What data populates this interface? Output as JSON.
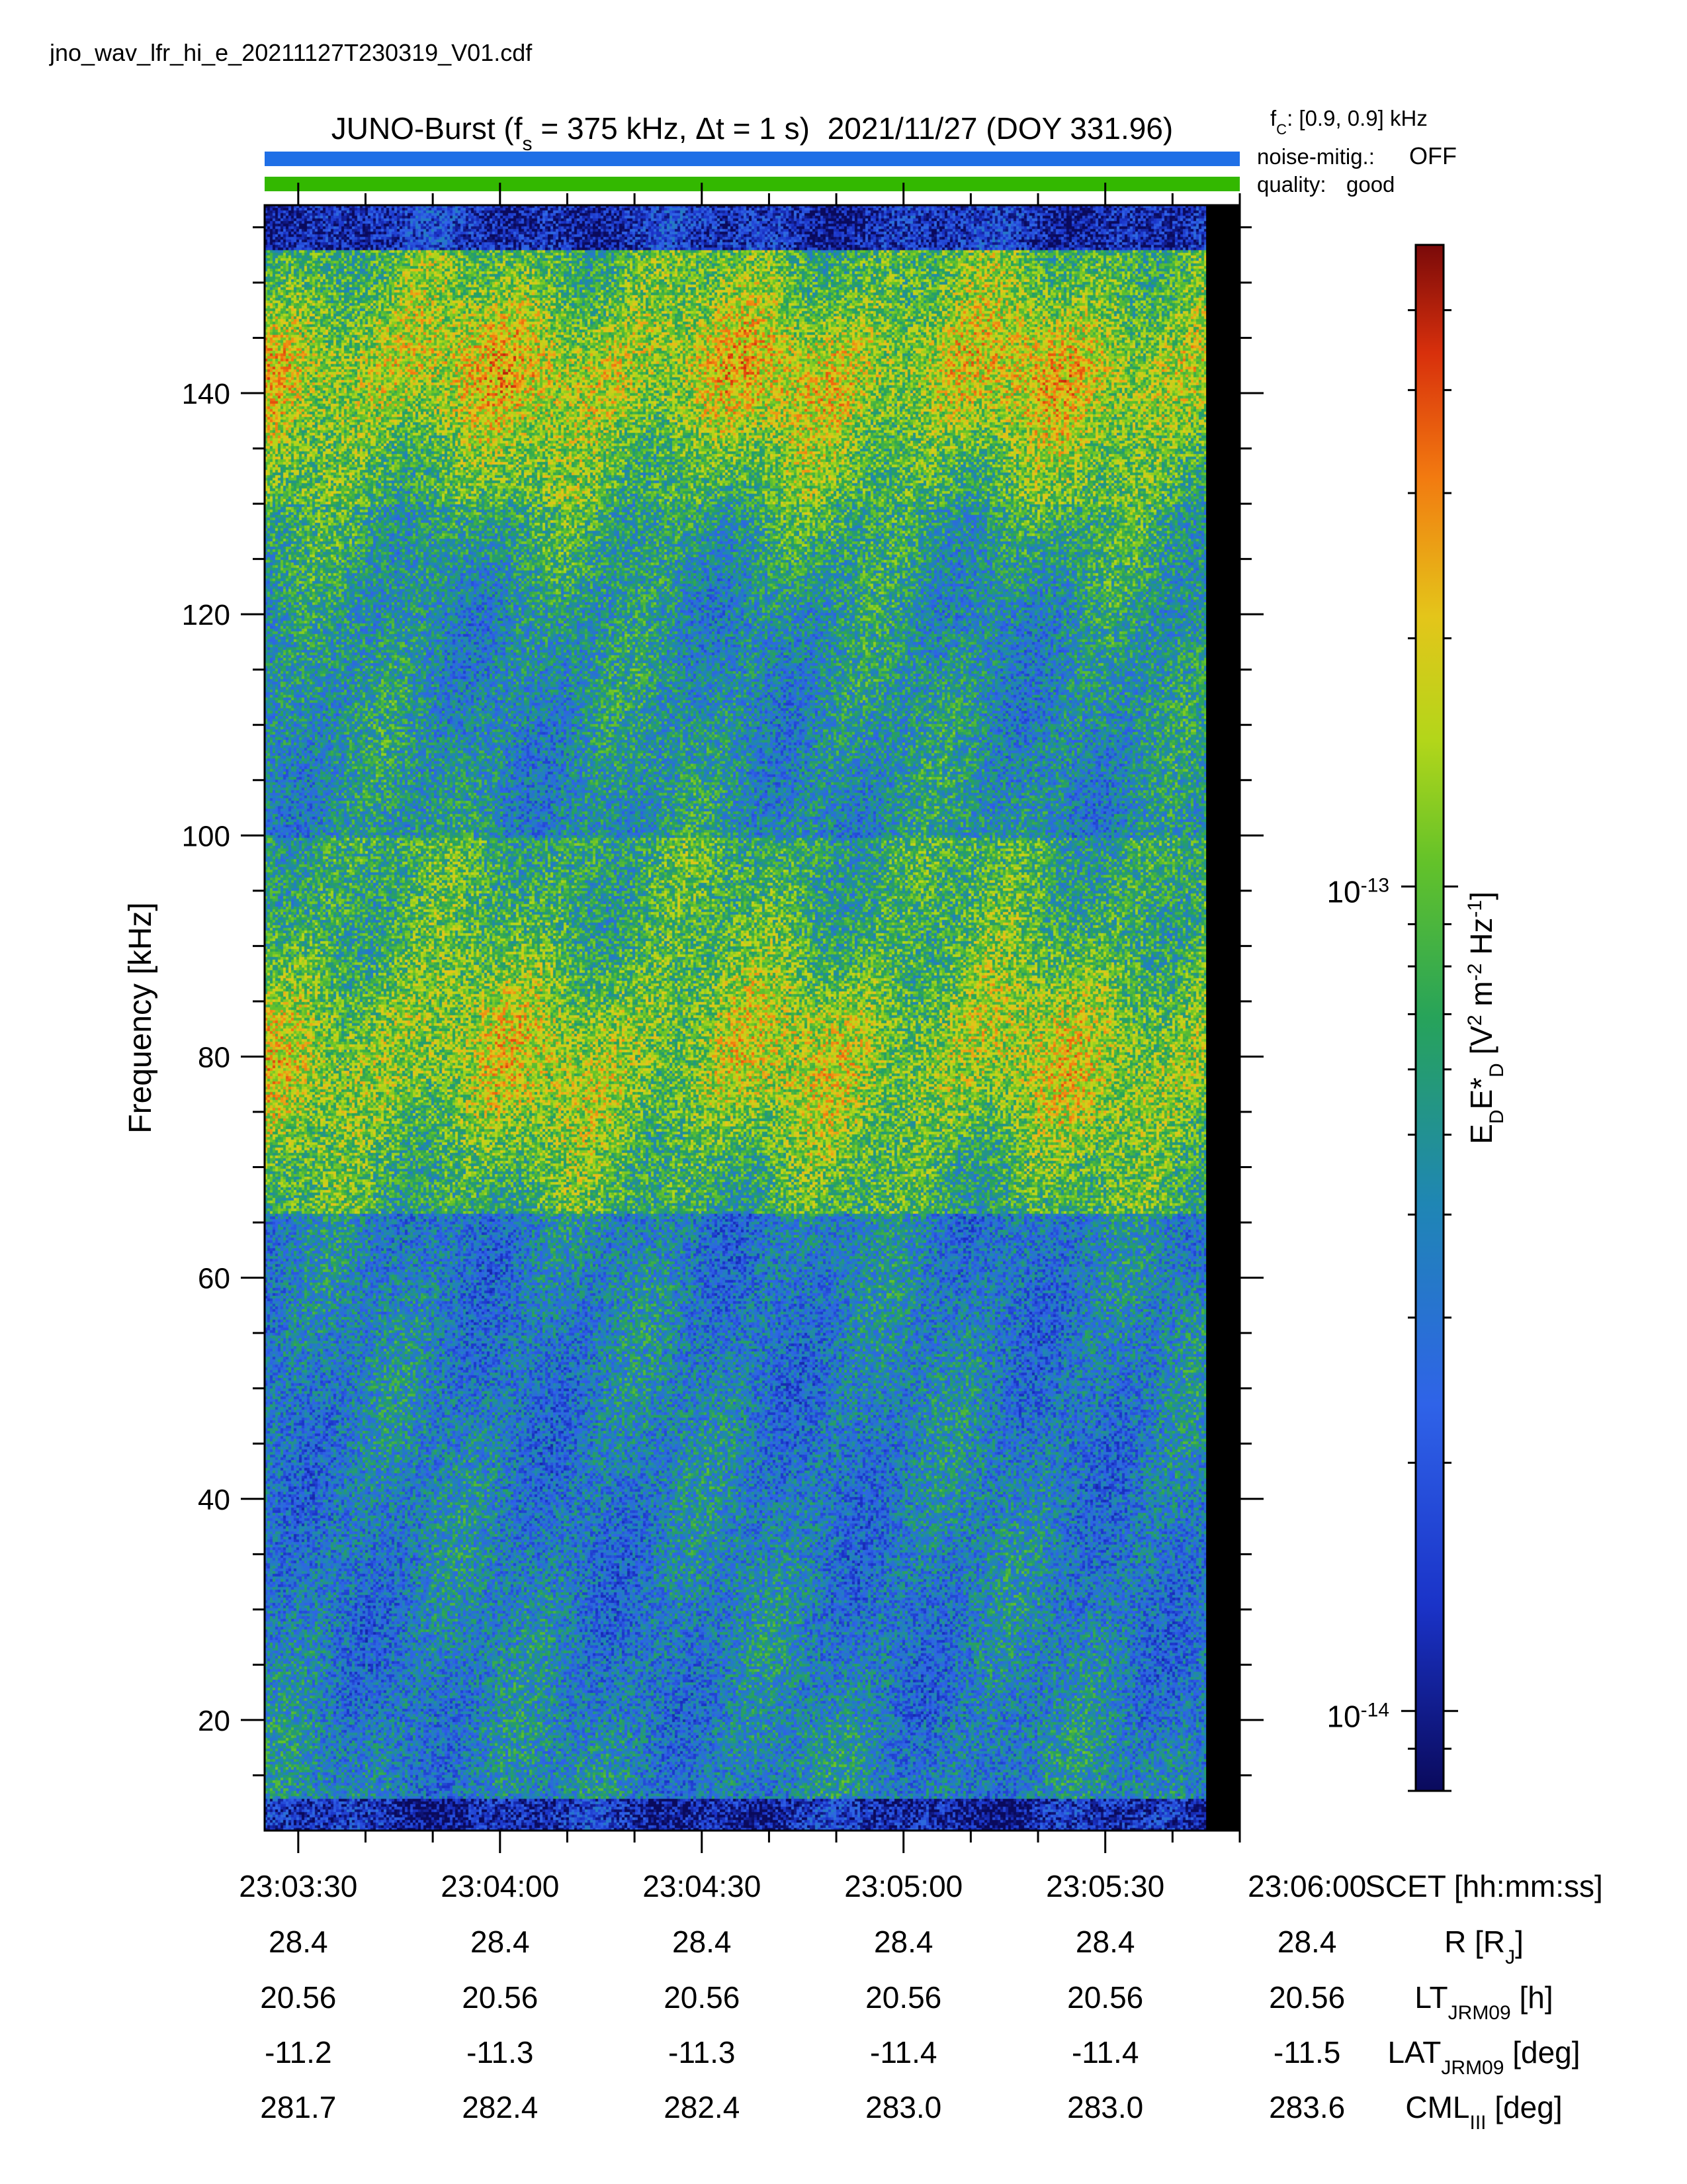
{
  "filename": "jno_wav_lfr_hi_e_20211127T230319_V01.cdf",
  "title": {
    "instrument": "JUNO-Burst",
    "fs_label": "f",
    "fs_sub": "s",
    "fs_value": "= 375 kHz,",
    "dt_label": "Δt = 1 s)",
    "date": "2021/11/27 (DOY 331.96)"
  },
  "side_info": {
    "fc_label": "f",
    "fc_sub": "C",
    "fc_value": ": [0.9, 0.9] kHz",
    "noise_label": "noise-mitig.:",
    "noise_value": "OFF",
    "quality_label": "quality:",
    "quality_value": "good"
  },
  "colors": {
    "noise_bar": "#1f6fe6",
    "quality_bar": "#33b800",
    "noise_text": "#1f6fe6",
    "quality_text": "#33b800",
    "data_gap": "#000000"
  },
  "chart_data": {
    "type": "heatmap",
    "ylabel": "Frequency [kHz]",
    "ylim": [
      10,
      157
    ],
    "y_ticks": [
      20,
      40,
      60,
      80,
      100,
      120,
      140
    ],
    "x_range_seconds": [
      -5,
      140
    ],
    "x_ticks_seconds": [
      0,
      30,
      60,
      90,
      120,
      150
    ],
    "x_tick_labels": [
      "23:03:30",
      "23:04:00",
      "23:04:30",
      "23:05:00",
      "23:05:30",
      "23:06:00"
    ],
    "data_gap_seconds": [
      135,
      140
    ],
    "colorbar": {
      "label": "E_D E*_D [V^2 m^-2 Hz^-1]",
      "scale": "log",
      "range": [
        8e-15,
        6e-13
      ],
      "tick_values": [
        1e-14,
        1e-13
      ],
      "tick_labels": [
        {
          "base": "10",
          "exp": "-14"
        },
        {
          "base": "10",
          "exp": "-13"
        }
      ]
    },
    "bands": [
      {
        "f_range": [
          10,
          13
        ],
        "level": "low (dark blue)"
      },
      {
        "f_range": [
          13,
          66
        ],
        "level": "moderate (blue with green speckle)"
      },
      {
        "f_range": [
          66,
          100
        ],
        "level": "high (yellow-green with red patches near 72-85 kHz)"
      },
      {
        "f_range": [
          100,
          130
        ],
        "level": "moderate (blue-green)"
      },
      {
        "f_range": [
          130,
          153
        ],
        "level": "high (yellow with red patches near 135-148 kHz)"
      },
      {
        "f_range": [
          153,
          157
        ],
        "level": "low (dark blue)"
      }
    ]
  },
  "ephemeris": {
    "rows": [
      {
        "label": "SCET [hh:mm:ss]",
        "values": [
          "23:03:30",
          "23:04:00",
          "23:04:30",
          "23:05:00",
          "23:05:30",
          "23:06:00"
        ]
      },
      {
        "label": "R [RJ]",
        "values": [
          "28.4",
          "28.4",
          "28.4",
          "28.4",
          "28.4",
          "28.4"
        ]
      },
      {
        "label": "LTJRM09 [h]",
        "values": [
          "20.56",
          "20.56",
          "20.56",
          "20.56",
          "20.56",
          "20.56"
        ]
      },
      {
        "label": "LATJRM09 [deg]",
        "values": [
          "-11.2",
          "-11.3",
          "-11.3",
          "-11.4",
          "-11.4",
          "-11.5"
        ]
      },
      {
        "label": "CMLIII [deg]",
        "values": [
          "281.7",
          "282.4",
          "282.4",
          "283.0",
          "283.0",
          "283.6"
        ]
      }
    ],
    "label_parts": {
      "scet": "SCET [hh:mm:ss]",
      "r_main": "R [R",
      "r_sub": "J",
      "r_end": "]",
      "lt_main": "LT",
      "lt_sub": "JRM09",
      "lt_end": " [h]",
      "lat_main": "LAT",
      "lat_sub": "JRM09",
      "lat_end": " [deg]",
      "cml_main": "CML",
      "cml_sub": "III",
      "cml_end": " [deg]"
    }
  }
}
